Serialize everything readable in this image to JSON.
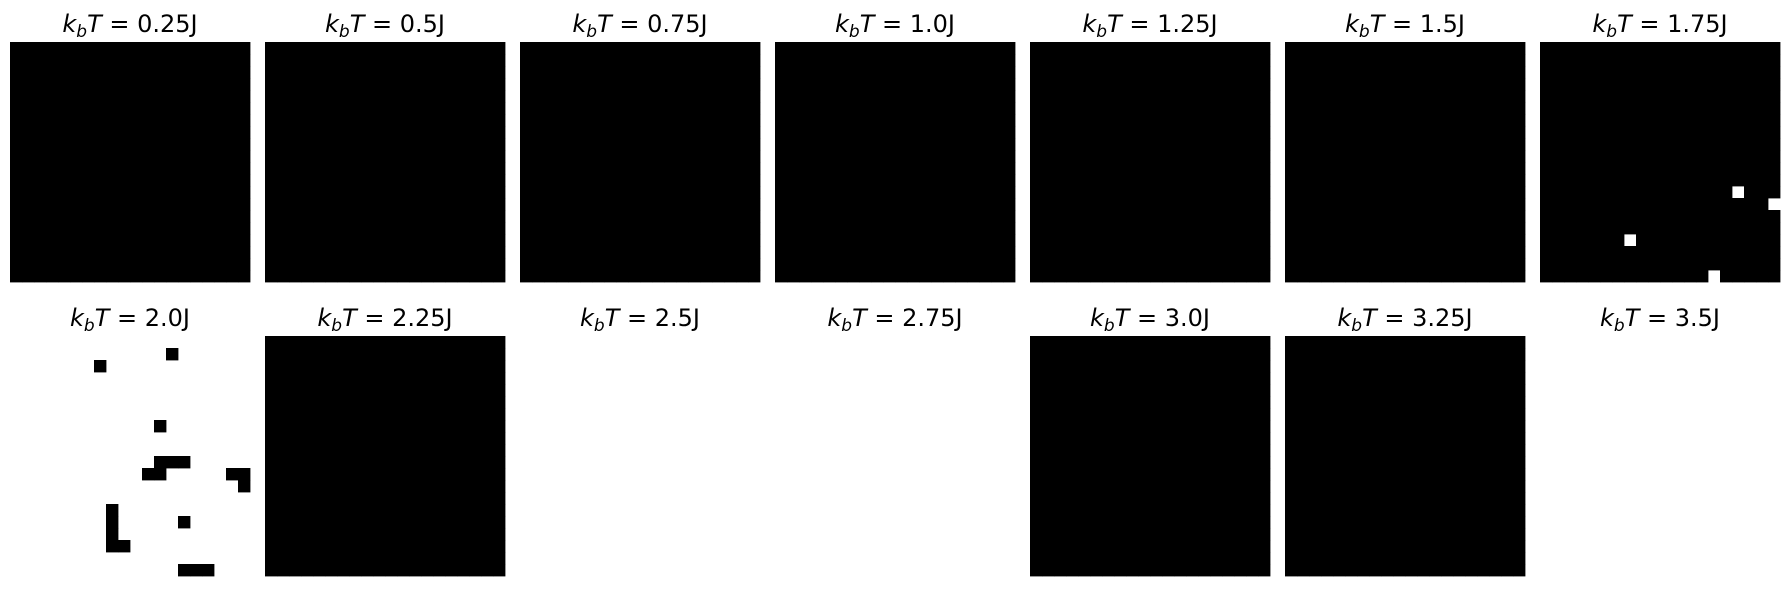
{
  "figure": {
    "background": "#ffffff"
  },
  "chart_data": {
    "type": "heatmap",
    "layout": {
      "rows": 2,
      "cols": 7
    },
    "grid_size": [
      20,
      20
    ],
    "cmap": {
      "-1": "#ffffff",
      "1": "#000000"
    },
    "title_prefix": "k",
    "title_subscript": "b",
    "title_var": "T",
    "panels": [
      {
        "temperature": "0.25",
        "unit": "J",
        "grid": [
          "11111111111111111111",
          "11111111111111111111",
          "11111111111111111111",
          "11111111111111111111",
          "11111111111111111111",
          "11111111111111111111",
          "11111111111111111111",
          "11111111111111111111",
          "11111111111111111111",
          "11111111111111111111",
          "11111111111111111111",
          "11111111111111111111",
          "11111111111111111111",
          "11111111111111111111",
          "11111111111111111111",
          "11111111111111111111",
          "11111111111111111111",
          "11111111111111111111",
          "11111111111111111111",
          "11111111111111111111"
        ]
      },
      {
        "temperature": "0.5",
        "unit": "J",
        "grid": [
          "11111111111111111111",
          "11111111111111111111",
          "11111111111111111111",
          "11111111111111111111",
          "11111111111111111111",
          "11111111111111111111",
          "11111111111111111111",
          "11111111111111111111",
          "11111111111111111111",
          "11111111111111111111",
          "11111111111111111111",
          "11111111111111111111",
          "11111111111111111111",
          "11111111111111111111",
          "11111111111111111111",
          "11111111111111111111",
          "11111111111111111111",
          "11111111111111111111",
          "11111111111111111111",
          "11111111111111111111"
        ]
      },
      {
        "temperature": "0.75",
        "unit": "J",
        "grid": [
          "11111111111111111111",
          "11111111111111111111",
          "11111111111111111111",
          "11111111111111111111",
          "11111111111111111111",
          "11111111111111111111",
          "11111111111111111111",
          "11111111111111111111",
          "11111111111111111111",
          "11111111111111111111",
          "11111111111111111111",
          "11111111111111111111",
          "11111111111111111111",
          "11111111111111111111",
          "11111111111111111111",
          "11111111111111111111",
          "11111111111111111111",
          "11111111111111111111",
          "11111111111111111111",
          "11111111111111111111"
        ]
      },
      {
        "temperature": "1.0",
        "unit": "J",
        "grid": [
          "11111111111111111111",
          "11111111111111111111",
          "11111111111111111111",
          "11111111111111111111",
          "11111111111111111111",
          "11111111111111111111",
          "11111111111111111111",
          "11111111111111111111",
          "11111111111111111111",
          "11111111111111111111",
          "11111111111111111111",
          "11111111111111111111",
          "11111111111111111111",
          "11111111111111111111",
          "11111111111111111111",
          "11111111111111111111",
          "11111111111111111111",
          "11111111111111111111",
          "11111111111111111111",
          "11111111111111111111"
        ]
      },
      {
        "temperature": "1.25",
        "unit": "J",
        "grid": [
          "11111111111111111111",
          "11111111111111111111",
          "11111111111111111111",
          "11111111111111111111",
          "11111111111111111111",
          "11111111111111111111",
          "11111111111111111111",
          "11111111111111111111",
          "11111111111111111111",
          "11111111111111111111",
          "11111111111111111111",
          "11111111111111111111",
          "11111111111111111111",
          "11111111111111111111",
          "11111111111111111111",
          "11111111111111111111",
          "11111111111111111111",
          "11111111111111111111",
          "11111111111111111111",
          "11111111111111111111"
        ]
      },
      {
        "temperature": "1.5",
        "unit": "J",
        "grid": [
          "11111111111111111111",
          "11111111111111111111",
          "11111111111111111111",
          "11111111111111111111",
          "11111111111111111111",
          "11111111111111111111",
          "11111111111111111111",
          "11111111111111111111",
          "11111111111111111111",
          "11111111111111111111",
          "11111111111111111111",
          "11111111111111111111",
          "11111111111111111111",
          "11111111111111111111",
          "11111111111111111111",
          "11111111111111111111",
          "11111111111111111111",
          "11111111111111111111",
          "11111111111111111111",
          "11111111111111111111"
        ]
      },
      {
        "temperature": "1.75",
        "unit": "J",
        "grid": [
          "11111111111111111111",
          "11111111111111111111",
          "11111111111111111111",
          "11111111111111111111",
          "11111111111111111111",
          "11111111111111111111",
          "11111111111111111111",
          "11111111111111111111",
          "11111111111111111111",
          "11111111111111111111",
          "11111111111111111111",
          "11111111111111111111",
          "11111111111111110111",
          "11111111111111111110",
          "11111111111111111111",
          "11111111111111111111",
          "11111110111111111111",
          "11111111111111111111",
          "11111111111111111111",
          "11111111111111011111"
        ]
      },
      {
        "temperature": "2.0",
        "unit": "J",
        "grid": [
          "00000000000000000000",
          "00000000000001000000",
          "00000001000000000000",
          "00000000000000000000",
          "00000000000000000000",
          "00000000000000000000",
          "00000000000000000000",
          "00000000000010000000",
          "00000000000000000000",
          "00000000000000000000",
          "00000000000011100000",
          "00000000000110000011",
          "00000000000000000001",
          "00000000000000000000",
          "00000000100000000000",
          "00000000100000100000",
          "00000000100000000000",
          "00000000110000000000",
          "00000000000000000000",
          "00000000000000111000"
        ]
      },
      {
        "temperature": "2.25",
        "unit": "J",
        "grid": [
          "11111111111111111111",
          "11111111111111111111",
          "11111111111111111111",
          "11111111111111111111",
          "11111111111111111111",
          "11111111111111111111",
          "11111111111111111111",
          "11111111111111111111",
          "11111111111111111111",
          "11111111111111111111",
          "11111111111111111111",
          "11111111111111111111",
          "11111111111111111111",
          "11111111111111111111",
          "11111111111111111111",
          "11111111111111111111",
          "11111111111111111111",
          "11111111111111111111",
          "11111111111111111111",
          "11111111111111111111"
        ]
      },
      {
        "temperature": "2.5",
        "unit": "J",
        "grid": [
          "00000000000000000000",
          "00000000000000000000",
          "00000000000000000000",
          "00000000000000000000",
          "00000000000000000000",
          "00000000000000000000",
          "00000000000000000000",
          "00000000000000000000",
          "00000000000000000000",
          "00000000000000000000",
          "00000000000000000000",
          "00000000000000000000",
          "00000000000000000000",
          "00000000000000000000",
          "00000000000000000000",
          "00000000000000000000",
          "00000000000000000000",
          "00000000000000000000",
          "00000000000000000000",
          "00000000000000000000"
        ]
      },
      {
        "temperature": "2.75",
        "unit": "J",
        "grid": [
          "00000000000000000000",
          "00000000000000000000",
          "00000000000000000000",
          "00000000000000000000",
          "00000000000000000000",
          "00000000000000000000",
          "00000000000000000000",
          "00000000000000000000",
          "00000000000000000000",
          "00000000000000000000",
          "00000000000000000000",
          "00000000000000000000",
          "00000000000000000000",
          "00000000000000000000",
          "00000000000000000000",
          "00000000000000000000",
          "00000000000000000000",
          "00000000000000000000",
          "00000000000000000000",
          "00000000000000000000"
        ]
      },
      {
        "temperature": "3.0",
        "unit": "J",
        "grid": [
          "11111111111111111111",
          "11111111111111111111",
          "11111111111111111111",
          "11111111111111111111",
          "11111111111111111111",
          "11111111111111111111",
          "11111111111111111111",
          "11111111111111111111",
          "11111111111111111111",
          "11111111111111111111",
          "11111111111111111111",
          "11111111111111111111",
          "11111111111111111111",
          "11111111111111111111",
          "11111111111111111111",
          "11111111111111111111",
          "11111111111111111111",
          "11111111111111111111",
          "11111111111111111111",
          "11111111111111111111"
        ]
      },
      {
        "temperature": "3.25",
        "unit": "J",
        "grid": [
          "11111111111111111111",
          "11111111111111111111",
          "11111111111111111111",
          "11111111111111111111",
          "11111111111111111111",
          "11111111111111111111",
          "11111111111111111111",
          "11111111111111111111",
          "11111111111111111111",
          "11111111111111111111",
          "11111111111111111111",
          "11111111111111111111",
          "11111111111111111111",
          "11111111111111111111",
          "11111111111111111111",
          "11111111111111111111",
          "11111111111111111111",
          "11111111111111111111",
          "11111111111111111111",
          "11111111111111111111"
        ]
      },
      {
        "temperature": "3.5",
        "unit": "J",
        "grid": [
          "00000000000000000000",
          "00000000000000000000",
          "00000000000000000000",
          "00000000000000000000",
          "00000000000000000000",
          "00000000000000000000",
          "00000000000000000000",
          "00000000000000000000",
          "00000000000000000000",
          "00000000000000000000",
          "00000000000000000000",
          "00000000000000000000",
          "00000000000000000000",
          "00000000000000000000",
          "00000000000000000000",
          "00000000000000000000",
          "00000000000000000000",
          "00000000000000000000",
          "00000000000000000000",
          "00000000000000000000"
        ]
      }
    ]
  }
}
